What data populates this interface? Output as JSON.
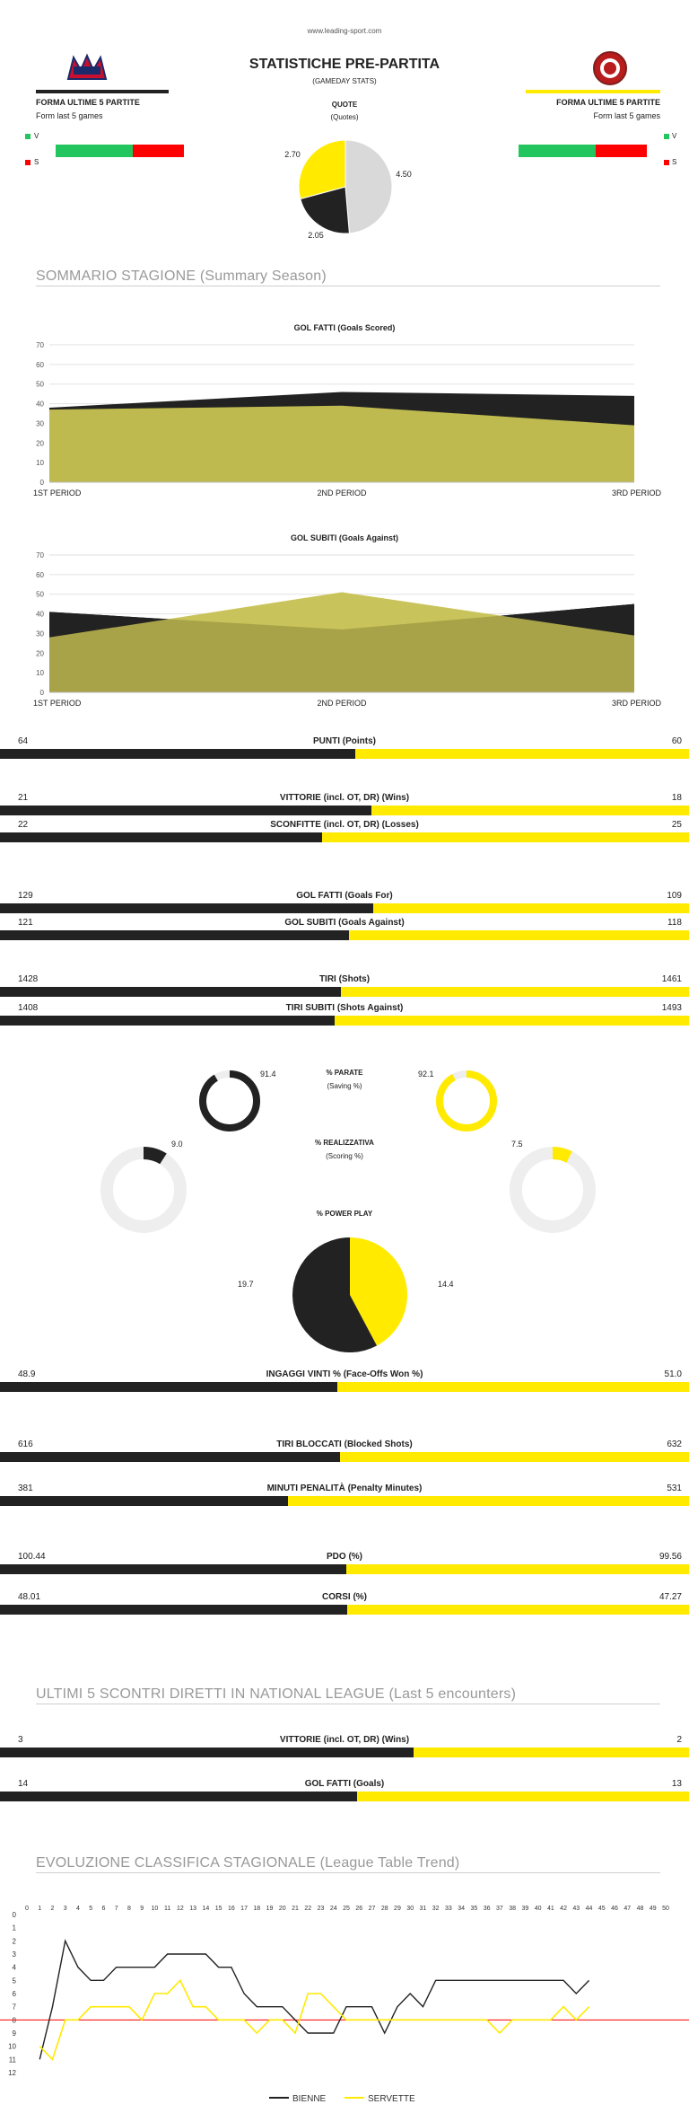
{
  "header": {
    "site": "www.leading-sport.com",
    "title": "STATISTICHE PRE-PARTITA",
    "subtitle": "(GAMEDAY STATS)",
    "quote_title": "QUOTE",
    "quote_sub": "(Quotes)",
    "form_title": "FORMA ULTIME 5 PARTITE",
    "form_sub": "Form last 5 games",
    "legend_v": "V",
    "legend_s": "S"
  },
  "colors": {
    "black": "#222222",
    "yellow": "#ffea00",
    "olive": "#bfba4f",
    "grey": "#d9d9d9",
    "green": "#22c55e",
    "red": "#ff0000"
  },
  "form": {
    "home": {
      "wins": 3,
      "losses": 2
    },
    "away": {
      "wins": 3,
      "losses": 2
    }
  },
  "quotes": {
    "labels": [
      "2.70",
      "2.05",
      "4.50"
    ],
    "values": [
      2.7,
      2.05,
      4.5
    ]
  },
  "summary": {
    "title": "SOMMARIO STAGIONE (Summary Season)",
    "perc_title": "% PARATE",
    "perc_sub": "(Saving %)",
    "scoring_title": "% REALIZZATIVA",
    "scoring_sub": "(Scoring %)",
    "pp_title": "% POWER PLAY",
    "save_home": "91.4",
    "save_away": "92.1",
    "score_home": "9.0",
    "score_away": "7.5",
    "pp_home": "19.7",
    "pp_away": "14.4"
  },
  "compare": {
    "points": {
      "label": "PUNTI (Points)",
      "home": "64",
      "away": "60"
    },
    "wins": {
      "label": "VITTORIE (incl. OT, DR) (Wins)",
      "home": "21",
      "away": "18"
    },
    "losses": {
      "label": "SCONFITTE (incl. OT, DR) (Losses)",
      "home": "22",
      "away": "25"
    },
    "goals_for": {
      "label": "GOL FATTI (Goals For)",
      "home": "129",
      "away": "109"
    },
    "goals_against": {
      "label": "GOL SUBITI (Goals Against)",
      "home": "121",
      "away": "118"
    },
    "shots": {
      "label": "TIRI (Shots)",
      "home": "1428",
      "away": "1461"
    },
    "shots_against": {
      "label": "TIRI SUBITI (Shots Against)",
      "home": "1408",
      "away": "1493"
    },
    "faceoffs": {
      "label": "INGAGGI VINTI % (Face-Offs Won %)",
      "home": "48.9",
      "away": "51.0"
    },
    "blocked": {
      "label": "TIRI BLOCCATI (Blocked Shots)",
      "home": "616",
      "away": "632"
    },
    "pim": {
      "label": "MINUTI PENALITÀ (Penalty Minutes)",
      "home": "381",
      "away": "531"
    },
    "pdo": {
      "label": "PDO (%)",
      "home": "100.44",
      "away": "99.56"
    },
    "corsi": {
      "label": "CORSI (%)",
      "home": "48.01",
      "away": "47.27"
    }
  },
  "h2h": {
    "title": "ULTIMI 5 SCONTRI DIRETTI IN NATIONAL LEAGUE (Last 5 encounters)",
    "wins": {
      "label": "VITTORIE (incl. OT, DR) (Wins)",
      "home": "3",
      "away": "2"
    },
    "goals": {
      "label": "GOL FATTI (Goals)",
      "home": "14",
      "away": "13"
    }
  },
  "trend": {
    "title": "EVOLUZIONE CLASSIFICA STAGIONALE (League Table Trend)"
  },
  "chart_data": [
    {
      "type": "area",
      "title": "GOL FATTI (Goals Scored)",
      "categories": [
        "1ST PERIOD",
        "2ND PERIOD",
        "3RD PERIOD"
      ],
      "ylim": [
        0,
        70
      ],
      "yticks": [
        "0",
        "10",
        "20",
        "30",
        "40",
        "50",
        "60",
        "70"
      ],
      "series": [
        {
          "values": [
            38,
            46,
            44
          ]
        },
        {
          "values": [
            37,
            39,
            29
          ]
        }
      ]
    },
    {
      "type": "area",
      "title": "GOL SUBITI (Goals Against)",
      "categories": [
        "1ST PERIOD",
        "2ND PERIOD",
        "3RD PERIOD"
      ],
      "ylim": [
        0,
        70
      ],
      "yticks": [
        "0",
        "10",
        "20",
        "30",
        "40",
        "50",
        "60",
        "70"
      ],
      "series": [
        {
          "values": [
            41,
            32,
            45
          ]
        },
        {
          "values": [
            28,
            51,
            29
          ]
        }
      ]
    },
    {
      "type": "bar",
      "title": "PUNTI (Points)",
      "categories": [
        "home",
        "away"
      ],
      "values": [
        64,
        60
      ]
    },
    {
      "type": "line",
      "title": "EVOLUZIONE CLASSIFICA STAGIONALE (League Table Trend)",
      "xlim": [
        0,
        50
      ],
      "ylim": [
        12,
        0
      ],
      "xticks": [
        "0",
        "1",
        "2",
        "3",
        "4",
        "5",
        "6",
        "7",
        "8",
        "9",
        "10",
        "11",
        "12",
        "13",
        "14",
        "15",
        "16",
        "17",
        "18",
        "19",
        "20",
        "21",
        "22",
        "23",
        "24",
        "25",
        "26",
        "27",
        "28",
        "29",
        "30",
        "31",
        "32",
        "33",
        "34",
        "35",
        "36",
        "37",
        "38",
        "39",
        "40",
        "41",
        "42",
        "43",
        "44",
        "45",
        "46",
        "47",
        "48",
        "49",
        "50"
      ],
      "yticks": [
        "0",
        "1",
        "2",
        "3",
        "4",
        "5",
        "6",
        "7",
        "8",
        "9",
        "10",
        "11",
        "12"
      ],
      "reference_line": 8,
      "series": [
        {
          "name": "BIENNE",
          "values": [
            11,
            7,
            2,
            4,
            5,
            5,
            4,
            4,
            4,
            4,
            3,
            3,
            3,
            3,
            4,
            4,
            6,
            7,
            7,
            7,
            8,
            9,
            9,
            9,
            7,
            7,
            7,
            9,
            7,
            6,
            7,
            5,
            5,
            5,
            5,
            5,
            5,
            5,
            5,
            5,
            5,
            5,
            6,
            5
          ]
        },
        {
          "name": "SERVETTE",
          "values": [
            10,
            11,
            8,
            8,
            7,
            7,
            7,
            7,
            8,
            6,
            6,
            5,
            7,
            7,
            8,
            8,
            8,
            9,
            8,
            8,
            9,
            6,
            6,
            7,
            8,
            8,
            8,
            8,
            8,
            8,
            8,
            8,
            8,
            8,
            8,
            8,
            9,
            8,
            8,
            8,
            8,
            7,
            8,
            7
          ]
        }
      ]
    }
  ]
}
